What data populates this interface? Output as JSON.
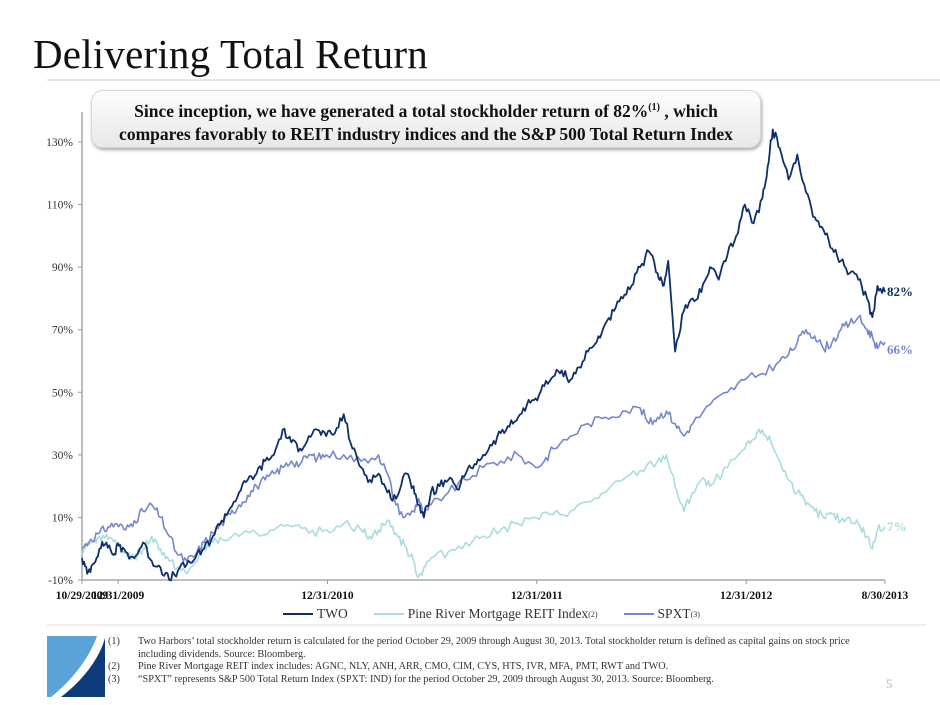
{
  "page": {
    "title": "Delivering Total Return",
    "page_number": "5"
  },
  "callout": {
    "line1_pre": "Since inception, we have generated a total stockholder return of 82%",
    "line1_sup": "(1)",
    "line1_post": " , which",
    "line2": "compares favorably to REIT industry indices and the S&P 500 Total Return Index"
  },
  "legend": {
    "items": [
      {
        "label": "TWO",
        "sup": ""
      },
      {
        "label": "Pine River Mortgage REIT Index",
        "sup": "(2)"
      },
      {
        "label": "SPXT",
        "sup": "(3)"
      }
    ]
  },
  "footnotes": [
    {
      "num": "(1)",
      "text": "Two Harbors’ total stockholder return is calculated for the period October 29, 2009 through August 30, 2013. Total stockholder return is defined as capital gains on stock price including dividends. Source: Bloomberg."
    },
    {
      "num": "(2)",
      "text": "Pine River Mortgage REIT index includes: AGNC, NLY, ANH, ARR, CMO, CIM, CYS, HTS, IVR, MFA, PMT, RWT and TWO."
    },
    {
      "num": "(3)",
      "text": "“SPXT” represents S&P 500 Total Return Index (SPXT: IND) for the period October 29, 2009 through August 30, 2013. Source: Bloomberg."
    }
  ],
  "colors": {
    "two": "#0d2f6b",
    "pine_river": "#a9dce0",
    "spxt": "#7388cc",
    "logo_light": "#5aa3d8",
    "logo_dark": "#0d3a78"
  },
  "chart_data": {
    "type": "line",
    "title": "",
    "xlabel": "",
    "ylabel": "",
    "ylim": [
      -10,
      140
    ],
    "y_ticks": [
      "-10%",
      "10%",
      "30%",
      "50%",
      "70%",
      "90%",
      "110%",
      "130%"
    ],
    "y_tick_values": [
      -10,
      10,
      30,
      50,
      70,
      90,
      110,
      130
    ],
    "x_ticks": [
      "10/29/2009",
      "12/31/2009",
      "12/31/2010",
      "12/31/2011",
      "12/31/2012",
      "8/30/2013"
    ],
    "x_tick_values": [
      0,
      2.07,
      14.07,
      26.07,
      38.07,
      46.03
    ],
    "x_unit": "months since 10/29/2009",
    "xlim": [
      0,
      46.03
    ],
    "grid": false,
    "legend_position": "bottom",
    "end_labels": [
      {
        "series": "TWO",
        "text": "82%"
      },
      {
        "series": "SPXT",
        "text": "66%"
      },
      {
        "series": "Pine River Mortgage REIT Index",
        "text": "7%"
      }
    ],
    "series": [
      {
        "name": "TWO",
        "x": [
          0,
          0.3,
          0.6,
          1,
          1.4,
          1.8,
          2.1,
          2.5,
          3,
          3.5,
          4,
          4.5,
          5,
          5.5,
          6,
          6.5,
          7,
          7.5,
          8,
          8.5,
          9,
          9.5,
          10,
          10.5,
          11,
          11.5,
          12,
          12.5,
          13,
          13.5,
          14,
          14.5,
          15,
          15.5,
          16,
          16.5,
          17,
          17.5,
          18,
          18.5,
          19,
          19.3,
          19.6,
          20,
          20.5,
          21,
          21.5,
          22,
          22.5,
          23,
          23.5,
          24,
          24.5,
          25,
          25.5,
          26,
          26.5,
          27,
          27.5,
          28,
          28.5,
          29,
          29.5,
          30,
          30.5,
          31,
          31.5,
          32,
          32.5,
          33,
          33.3,
          33.6,
          34,
          34.5,
          35,
          35.5,
          36,
          36.5,
          37,
          37.5,
          38,
          38.5,
          39,
          39.3,
          39.6,
          40,
          40.5,
          41,
          41.5,
          42,
          42.5,
          43,
          43.5,
          44,
          44.5,
          45,
          45.3,
          45.6,
          46.03
        ],
        "values": [
          -3,
          -8,
          -5,
          0,
          2,
          -2,
          1,
          -1,
          -3,
          2,
          -4,
          -6,
          -10,
          -7,
          -5,
          -3,
          0,
          4,
          9,
          13,
          18,
          22,
          24,
          28,
          30,
          38,
          34,
          32,
          36,
          38,
          36,
          37,
          43,
          32,
          26,
          22,
          24,
          18,
          16,
          24,
          20,
          14,
          10,
          18,
          20,
          22,
          19,
          24,
          27,
          30,
          33,
          37,
          39,
          42,
          46,
          48,
          52,
          55,
          57,
          54,
          58,
          63,
          66,
          72,
          76,
          80,
          84,
          90,
          95,
          88,
          84,
          92,
          63,
          76,
          80,
          82,
          90,
          86,
          94,
          100,
          110,
          104,
          112,
          122,
          134,
          128,
          118,
          126,
          114,
          106,
          102,
          96,
          92,
          88,
          86,
          80,
          74,
          84,
          82
        ]
      },
      {
        "name": "Pine River Mortgage REIT Index",
        "x": [
          0,
          0.5,
          1,
          1.5,
          2,
          2.5,
          3,
          3.5,
          4,
          4.5,
          5,
          5.5,
          6,
          6.5,
          7,
          7.5,
          8,
          9,
          10,
          11,
          12,
          13,
          14,
          15,
          16,
          16.5,
          17,
          17.5,
          18,
          18.5,
          19,
          19.3,
          19.6,
          20,
          21,
          22,
          23,
          24,
          25,
          26,
          27,
          28,
          29,
          30,
          31,
          32,
          33,
          33.5,
          34,
          34.5,
          35,
          35.5,
          36,
          37,
          38,
          38.5,
          39,
          39.5,
          40,
          40.5,
          41,
          41.5,
          42,
          42.5,
          43,
          43.5,
          44,
          44.5,
          45,
          45.3,
          45.6,
          46.03
        ],
        "values": [
          -2,
          2,
          4,
          3,
          1,
          -1,
          -3,
          0,
          4,
          0,
          -4,
          -6,
          -8,
          -4,
          0,
          2,
          3,
          4,
          5,
          6,
          7,
          5,
          6,
          8,
          6,
          4,
          6,
          9,
          5,
          1,
          -4,
          -9,
          -6,
          -3,
          -1,
          2,
          4,
          6,
          8,
          10,
          11,
          12,
          15,
          18,
          22,
          25,
          28,
          30,
          20,
          12,
          18,
          22,
          20,
          26,
          32,
          35,
          38,
          34,
          28,
          22,
          18,
          14,
          12,
          10,
          11,
          9,
          10,
          8,
          4,
          0,
          6,
          7
        ]
      },
      {
        "name": "SPXT",
        "x": [
          0,
          0.5,
          1,
          1.5,
          2,
          2.5,
          3,
          3.5,
          4,
          4.5,
          5,
          5.5,
          6,
          6.5,
          7,
          7.5,
          8,
          8.5,
          9,
          9.5,
          10,
          10.5,
          11,
          11.5,
          12,
          12.5,
          13,
          13.5,
          14,
          15,
          16,
          17,
          17.5,
          18,
          18.5,
          19,
          19.3,
          19.6,
          20,
          21,
          22,
          23,
          24,
          25,
          26,
          26.5,
          27,
          28,
          29,
          30,
          31,
          32,
          32.5,
          33,
          33.5,
          34,
          34.5,
          35,
          36,
          37,
          38,
          39,
          40,
          40.5,
          41,
          41.5,
          42,
          42.5,
          43,
          43.5,
          44,
          44.5,
          45,
          45.3,
          45.6,
          46.03
        ],
        "values": [
          0,
          3,
          5,
          7,
          8,
          6,
          9,
          12,
          14,
          10,
          4,
          -2,
          -4,
          -2,
          2,
          5,
          8,
          11,
          14,
          17,
          20,
          22,
          24,
          26,
          28,
          27,
          30,
          29,
          30,
          30,
          28,
          30,
          24,
          14,
          10,
          12,
          16,
          10,
          14,
          18,
          22,
          26,
          28,
          30,
          26,
          28,
          32,
          36,
          40,
          42,
          44,
          45,
          40,
          42,
          44,
          40,
          36,
          40,
          46,
          50,
          54,
          56,
          60,
          62,
          66,
          70,
          68,
          64,
          66,
          70,
          72,
          74,
          70,
          68,
          64,
          66
        ]
      }
    ]
  }
}
